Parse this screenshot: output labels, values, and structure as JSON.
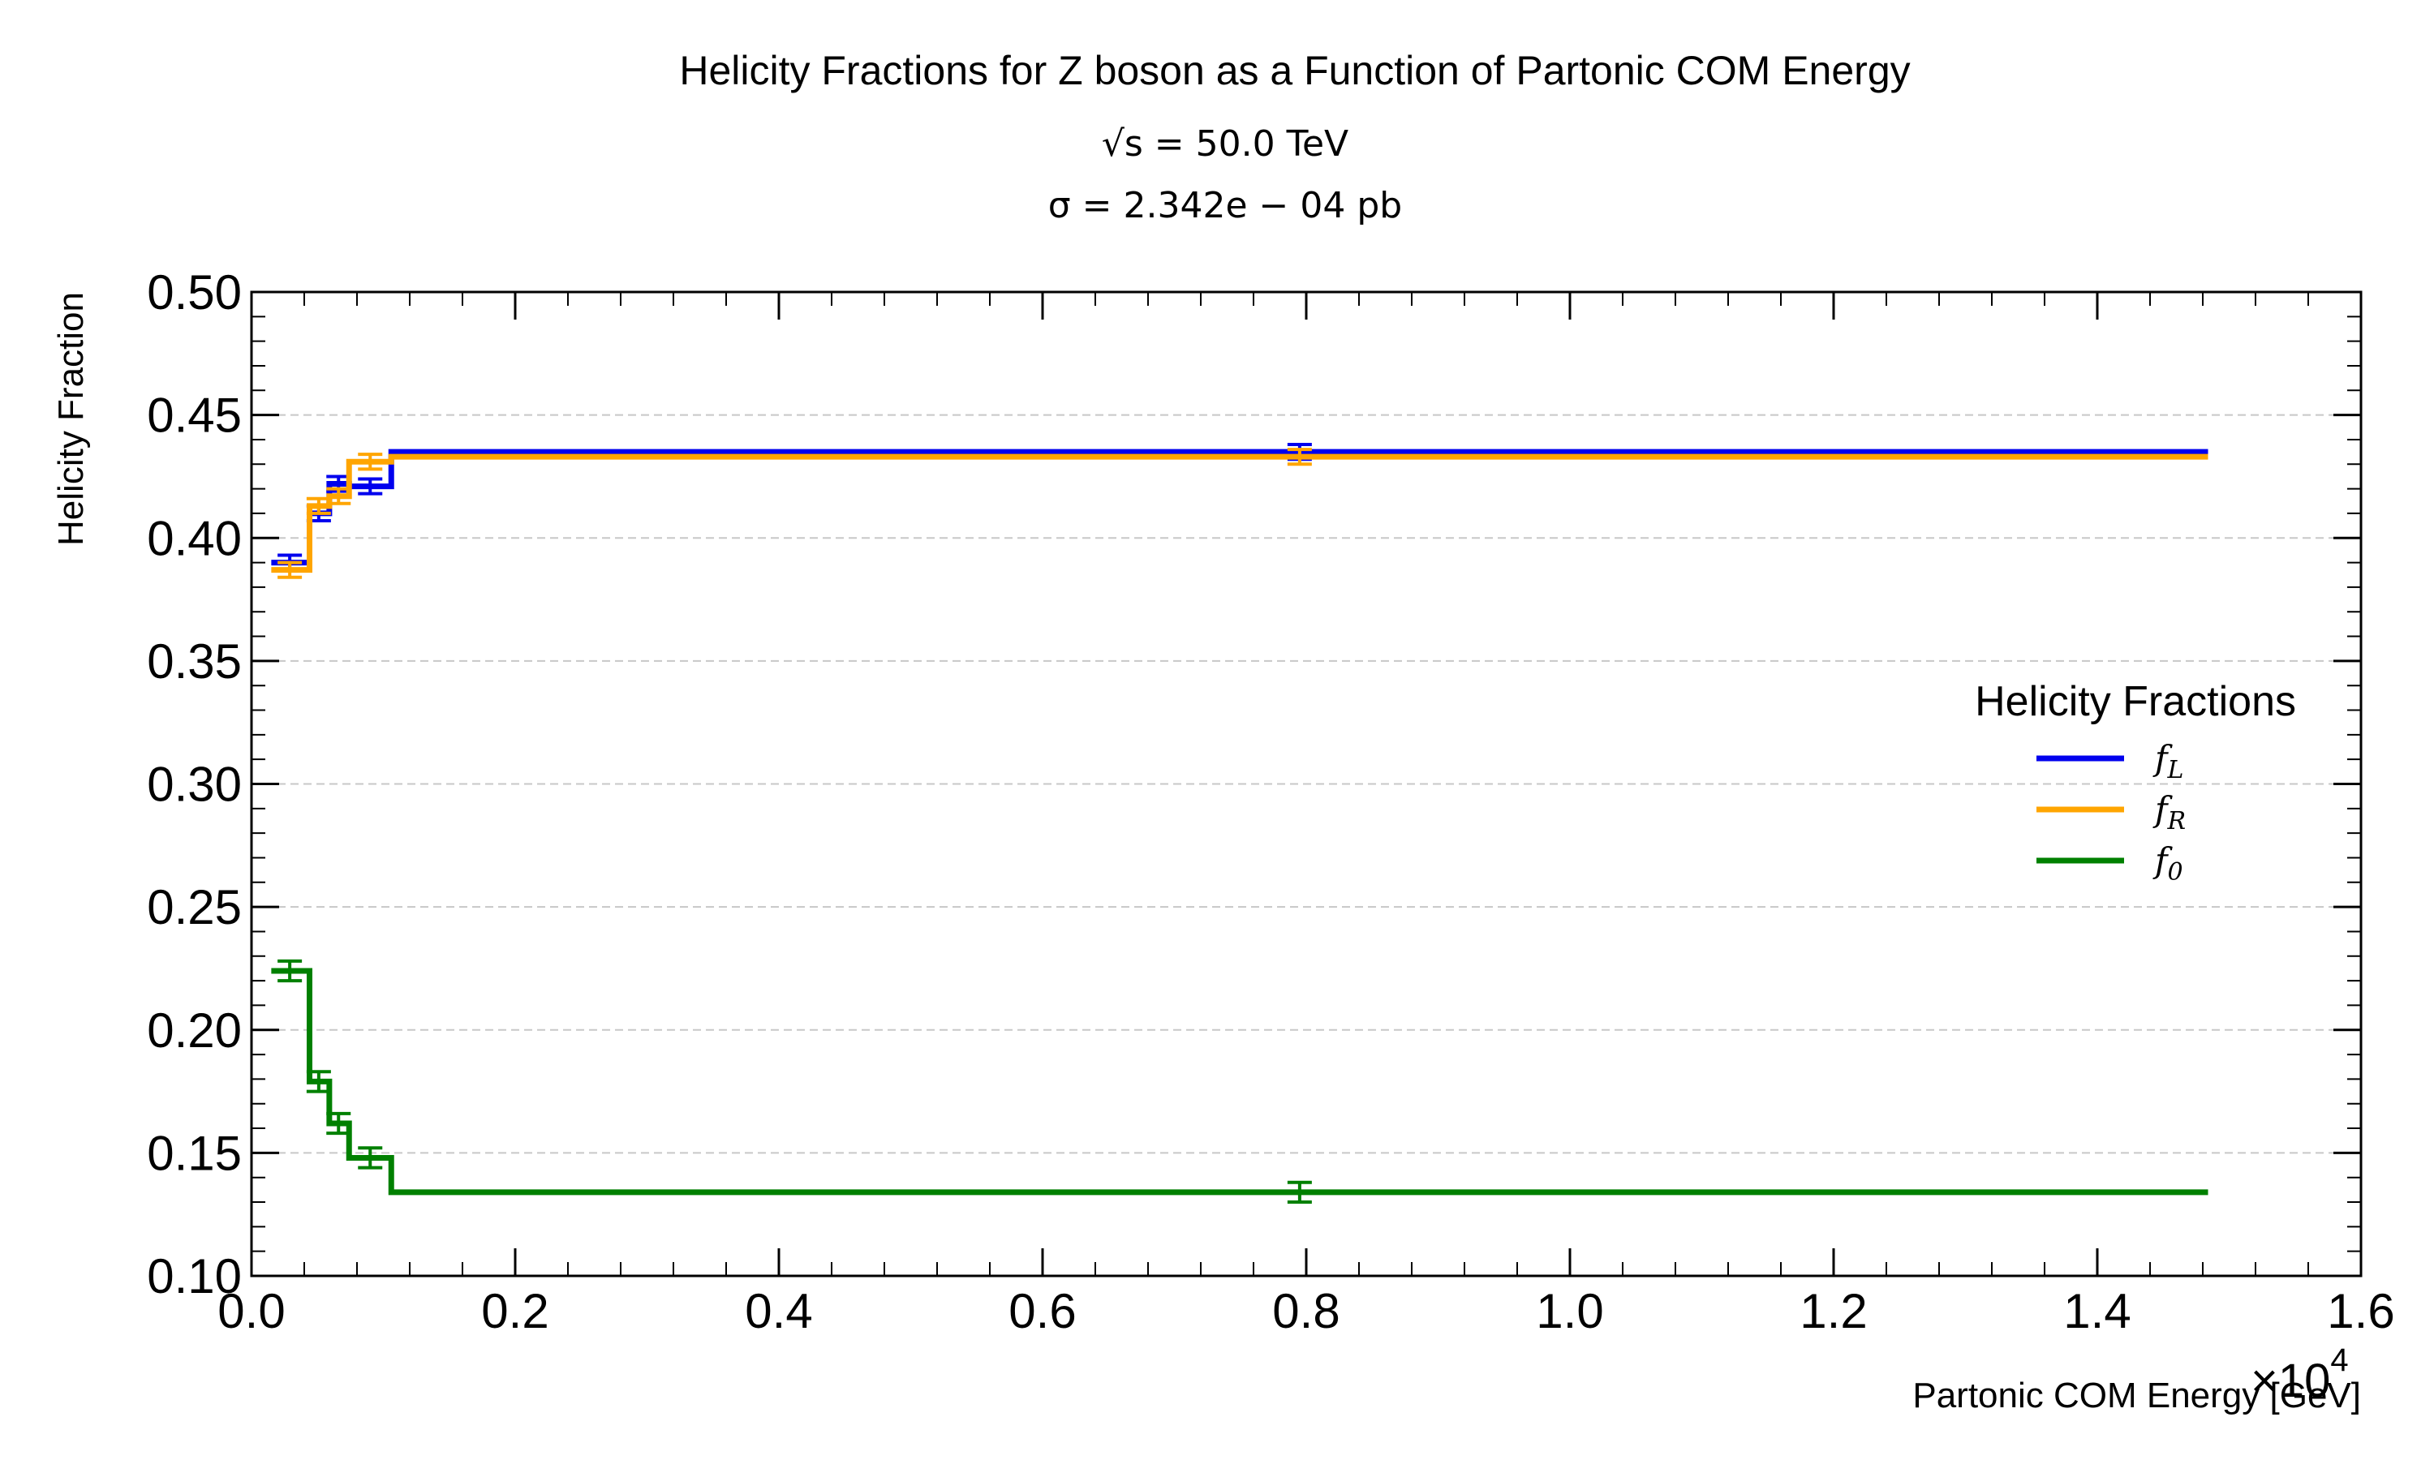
{
  "chart_data": {
    "type": "line",
    "title": "Helicity Fractions for Z boson as a Function of Partonic COM Energy",
    "subtitle_lines": [
      "√s = 50.0 TeV",
      "σ = 2.342e − 04 pb"
    ],
    "xlabel": "Partonic COM Energy [GeV]",
    "ylabel": "Helicity Fraction",
    "x_offset_label": "×10",
    "x_offset_exponent": "4",
    "xlim": [
      0,
      16000
    ],
    "ylim": [
      0.1,
      0.5
    ],
    "xticks": [
      0,
      2000,
      4000,
      6000,
      8000,
      10000,
      12000,
      14000,
      16000
    ],
    "xtick_labels": [
      "0.0",
      "0.2",
      "0.4",
      "0.6",
      "0.8",
      "1.0",
      "1.2",
      "1.4",
      "1.6"
    ],
    "yticks": [
      0.1,
      0.15,
      0.2,
      0.25,
      0.3,
      0.35,
      0.4,
      0.45,
      0.5
    ],
    "ytick_labels": [
      "0.10",
      "0.15",
      "0.20",
      "0.25",
      "0.30",
      "0.35",
      "0.40",
      "0.45",
      "0.50"
    ],
    "grid": "horizontal-dashed",
    "step_style": "histogram steps with error bars at bin centers",
    "bin_edges": [
      150,
      440,
      590,
      740,
      1060,
      14840
    ],
    "bin_centers": [
      290,
      510,
      660,
      900,
      7950
    ],
    "legend": {
      "title": "Helicity Fractions",
      "placement": "right",
      "entries": [
        {
          "symbol": "f",
          "sub": "L"
        },
        {
          "symbol": "f",
          "sub": "R"
        },
        {
          "symbol": "f",
          "sub": "0"
        }
      ]
    },
    "series": [
      {
        "name": "f_L",
        "color": "#0000ee",
        "values": [
          0.39,
          0.41,
          0.422,
          0.421,
          0.435
        ],
        "errors": [
          0.003,
          0.003,
          0.003,
          0.003,
          0.003
        ]
      },
      {
        "name": "f_R",
        "color": "#ffa500",
        "values": [
          0.387,
          0.413,
          0.417,
          0.431,
          0.433
        ],
        "errors": [
          0.003,
          0.003,
          0.003,
          0.003,
          0.003
        ]
      },
      {
        "name": "f_0",
        "color": "#008000",
        "values": [
          0.224,
          0.179,
          0.162,
          0.148,
          0.134
        ],
        "errors": [
          0.004,
          0.004,
          0.004,
          0.004,
          0.004
        ]
      }
    ]
  }
}
